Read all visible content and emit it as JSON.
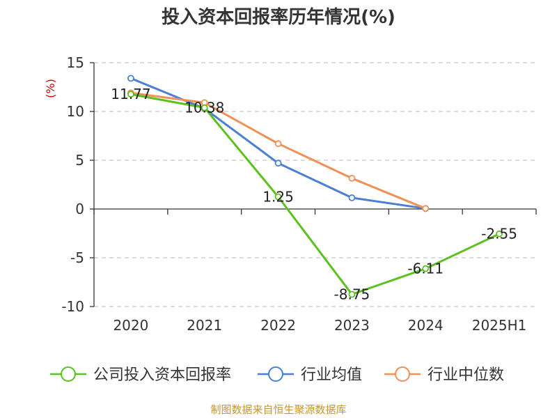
{
  "title": "投入资本回报率历年情况(%)",
  "source": "制图数据来自恒生聚源数据库",
  "colors": {
    "company": "#5bc21d",
    "industry_avg": "#4a7fd8",
    "industry_median": "#f28f57",
    "unit": "#cc0000",
    "source": "#c8962e",
    "grid": "#c8c8c8",
    "axis": "#333333"
  },
  "chart_data": {
    "type": "line",
    "title": "投入资本回报率历年情况(%)",
    "ylabel": "(%)",
    "categories": [
      "2020",
      "2021",
      "2022",
      "2023",
      "2024",
      "2025H1"
    ],
    "ylim": [
      -10,
      15
    ],
    "yticks": [
      15,
      10,
      5,
      0,
      -5,
      -10
    ],
    "grid": true,
    "legend_position": "bottom",
    "series": [
      {
        "name": "公司投入资本回报率",
        "color_key": "company",
        "values": [
          11.77,
          10.38,
          1.25,
          -8.75,
          -6.11,
          -2.55
        ],
        "labels": [
          "11.77",
          "10.38",
          "1.25",
          "-8.75",
          "-6.11",
          "-2.55"
        ]
      },
      {
        "name": "行业均值",
        "color_key": "industry_avg",
        "values": [
          13.4,
          10.3,
          4.7,
          1.15,
          0.05,
          null
        ]
      },
      {
        "name": "行业中位数",
        "color_key": "industry_median",
        "values": [
          11.9,
          10.9,
          6.7,
          3.15,
          0.05,
          null
        ]
      }
    ]
  }
}
